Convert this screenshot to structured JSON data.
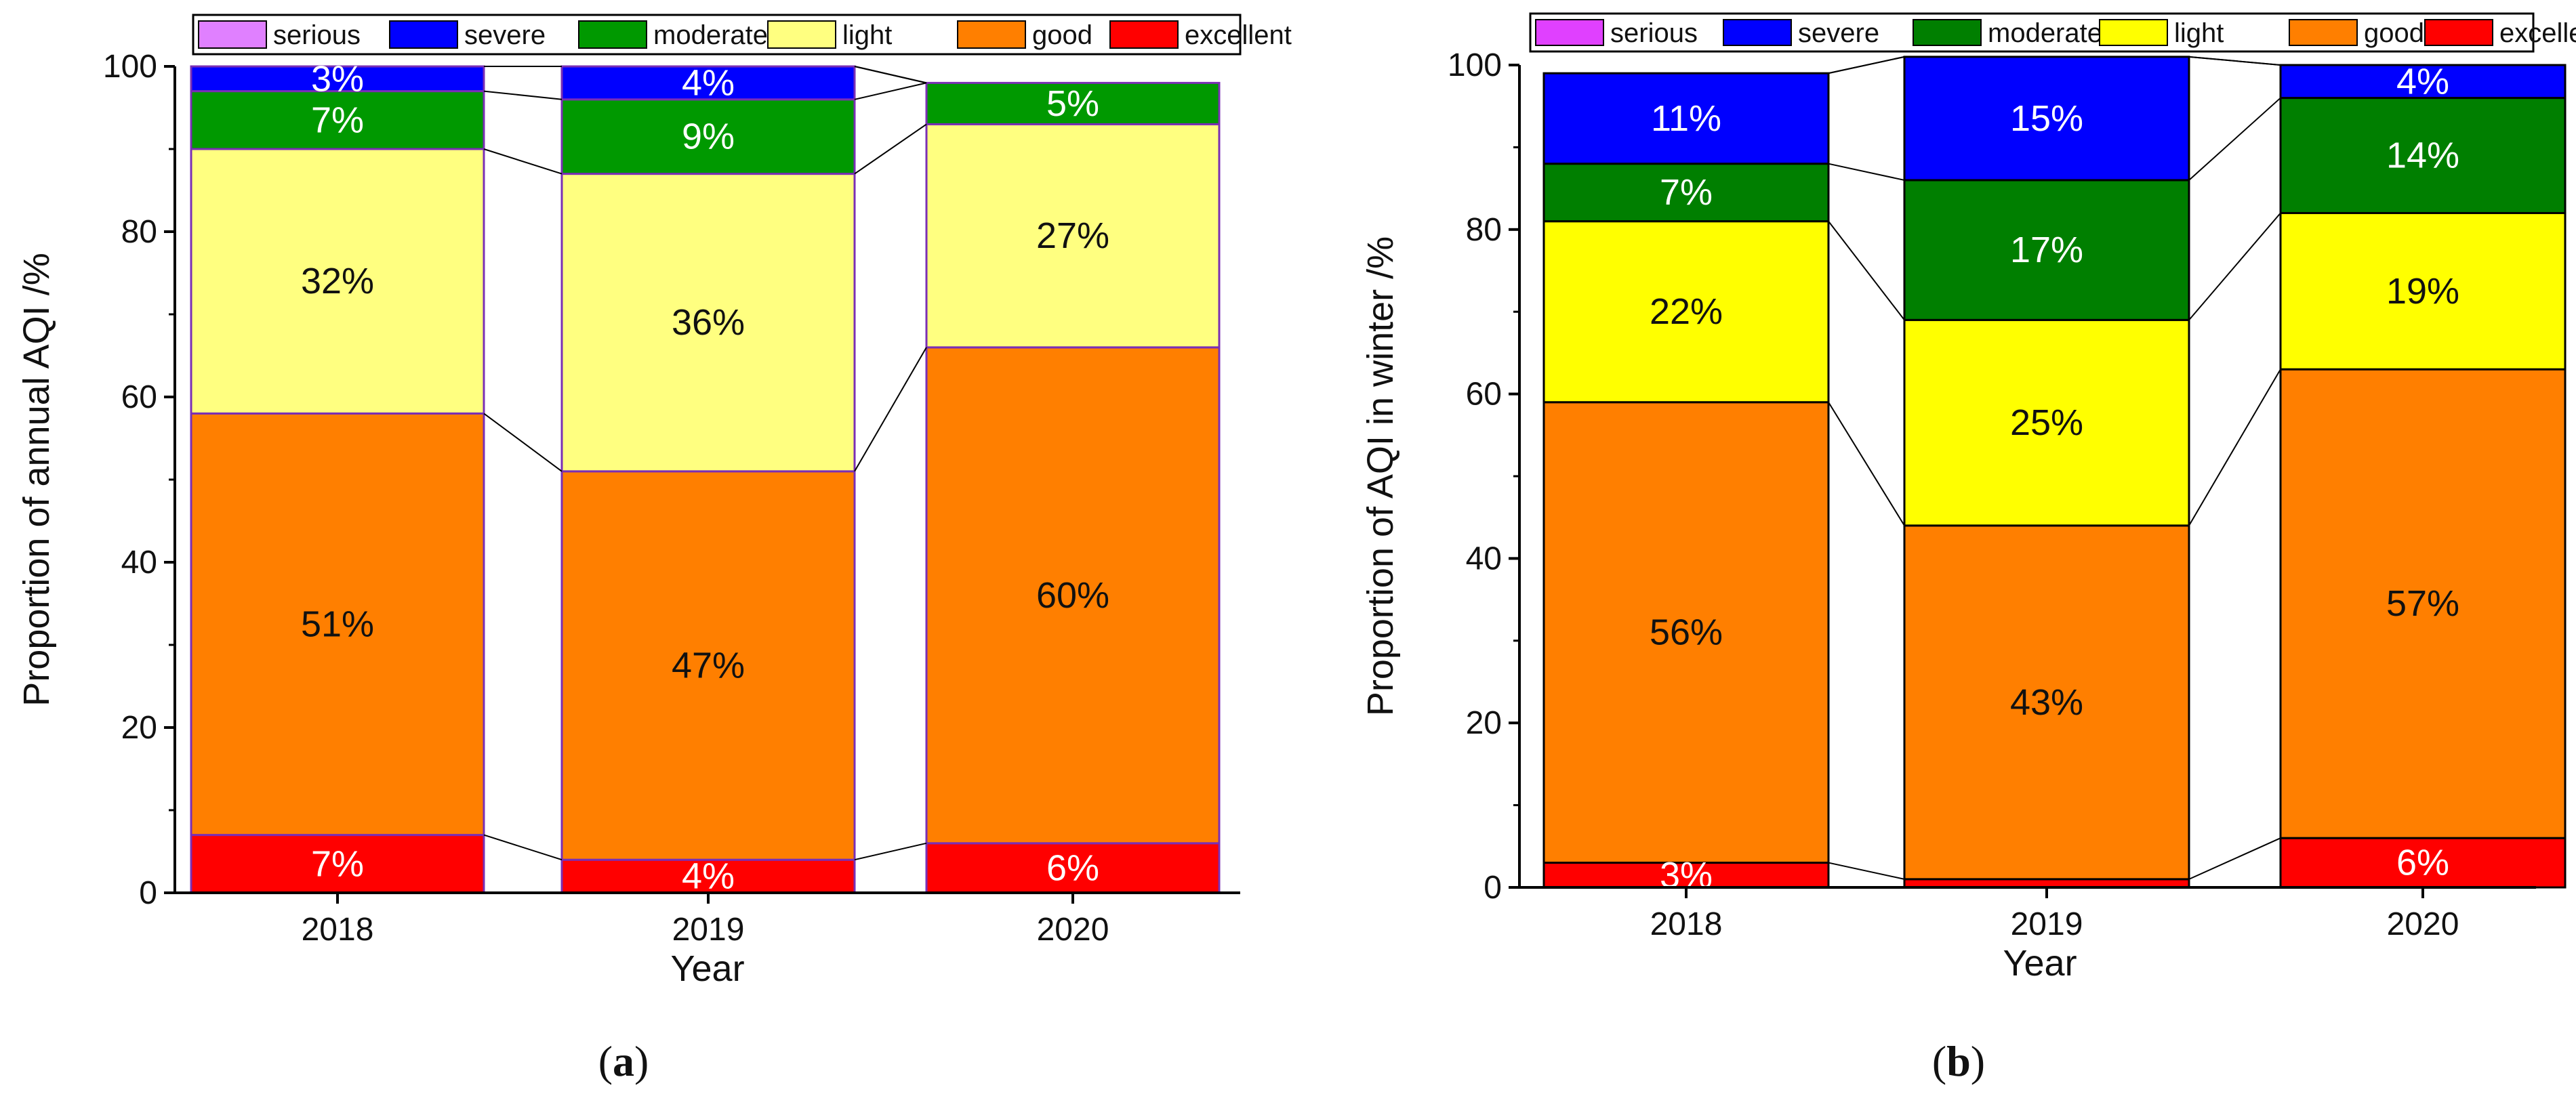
{
  "chart_data": [
    {
      "type": "bar",
      "stacked": true,
      "panel_label": "a",
      "title": "",
      "xlabel": "Year",
      "ylabel": "Proportion of annual AQI /%",
      "ylim": [
        0,
        100
      ],
      "yticks": [
        "0",
        "20",
        "40",
        "60",
        "80",
        "100"
      ],
      "categories": [
        "2018",
        "2019",
        "2020"
      ],
      "legend": [
        "serious",
        "severe",
        "moderate",
        "light",
        "good",
        "excellent"
      ],
      "series": [
        {
          "name": "excellent",
          "color": "#ff0000",
          "values": [
            7,
            4,
            6
          ],
          "labels": [
            "7%",
            "4%",
            "6%"
          ],
          "label_color": "#ffffff"
        },
        {
          "name": "good",
          "color": "#ff7f00",
          "values": [
            51,
            47,
            60
          ],
          "labels": [
            "51%",
            "47%",
            "60%"
          ],
          "label_color": "#111111"
        },
        {
          "name": "light",
          "color": "#ffff80",
          "values": [
            32,
            36,
            27
          ],
          "labels": [
            "32%",
            "36%",
            "27%"
          ],
          "label_color": "#111111"
        },
        {
          "name": "moderate",
          "color": "#009900",
          "values": [
            7,
            9,
            5
          ],
          "labels": [
            "7%",
            "9%",
            "5%"
          ],
          "label_color": "#ffffff"
        },
        {
          "name": "severe",
          "color": "#0000ff",
          "values": [
            3,
            4,
            0
          ],
          "labels": [
            "3%",
            "4%",
            ""
          ],
          "label_color": "#ffffff"
        },
        {
          "name": "serious",
          "color": "#e080ff",
          "values": [
            0,
            0,
            0
          ],
          "labels": [
            "",
            "",
            ""
          ],
          "label_color": "#111111"
        }
      ],
      "border_color": "#7a2fb5"
    },
    {
      "type": "bar",
      "stacked": true,
      "panel_label": "b",
      "title": "",
      "xlabel": "Year",
      "ylabel": "Proportion of AQI in winter /%",
      "ylim": [
        0,
        100
      ],
      "yticks": [
        "0",
        "20",
        "40",
        "60",
        "80",
        "100"
      ],
      "categories": [
        "2018",
        "2019",
        "2020"
      ],
      "legend": [
        "serious",
        "severe",
        "moderate",
        "light",
        "good",
        "excellent"
      ],
      "series": [
        {
          "name": "excellent",
          "color": "#ff0000",
          "values": [
            3,
            1,
            6
          ],
          "labels": [
            "3%",
            "",
            "6%"
          ],
          "label_color": "#ffffff"
        },
        {
          "name": "good",
          "color": "#ff7f00",
          "values": [
            56,
            43,
            57
          ],
          "labels": [
            "56%",
            "43%",
            "57%"
          ],
          "label_color": "#111111"
        },
        {
          "name": "light",
          "color": "#ffff00",
          "values": [
            22,
            25,
            19
          ],
          "labels": [
            "22%",
            "25%",
            "19%"
          ],
          "label_color": "#111111"
        },
        {
          "name": "moderate",
          "color": "#007f00",
          "values": [
            7,
            17,
            14
          ],
          "labels": [
            "7%",
            "17%",
            "14%"
          ],
          "label_color": "#ffffff"
        },
        {
          "name": "severe",
          "color": "#0000ff",
          "values": [
            11,
            15,
            4
          ],
          "labels": [
            "11%",
            "15%",
            "4%"
          ],
          "label_color": "#ffffff"
        },
        {
          "name": "serious",
          "color": "#e040ff",
          "values": [
            0,
            0,
            0
          ],
          "labels": [
            "",
            "",
            ""
          ],
          "label_color": "#111111"
        }
      ],
      "border_color": "#000000"
    }
  ]
}
